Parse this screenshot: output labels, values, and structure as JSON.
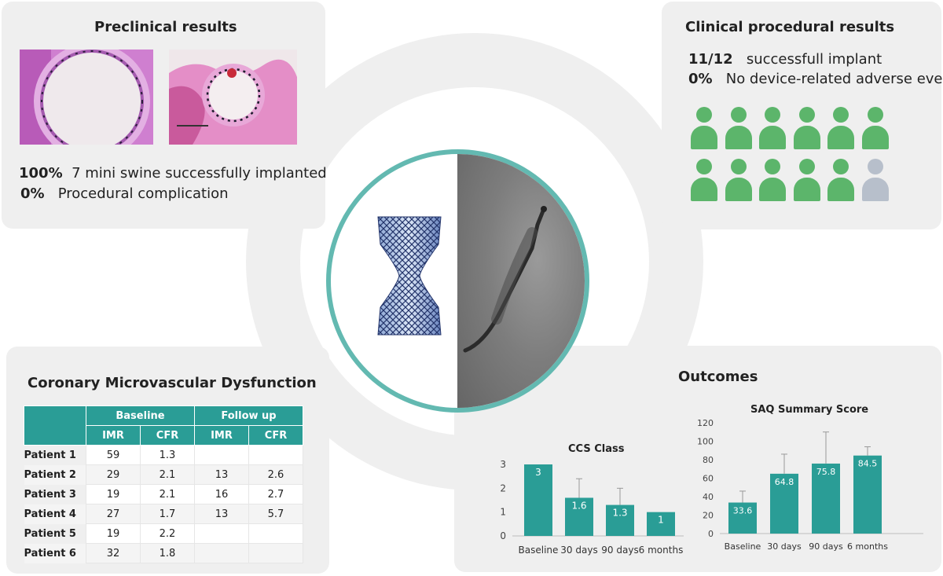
{
  "preclinical": {
    "title": "Preclinical results",
    "stat1_value": "100%",
    "stat1_text": "7 mini swine successfully implanted",
    "stat2_value": "0%",
    "stat2_text": "Procedural complication"
  },
  "clinical": {
    "title": "Clinical procedural results",
    "stat1_value": "11/12",
    "stat1_text": "successfull implant",
    "stat2_value": "0%",
    "stat2_text": "No device-related adverse events",
    "patients_total": 12,
    "patients_success": 11,
    "success_color": "#5cb56b",
    "fail_color": "#b7bfcb"
  },
  "cmd": {
    "title": "Coronary Microvascular Dysfunction",
    "group_baseline": "Baseline",
    "group_followup": "Follow up",
    "col_imr": "IMR",
    "col_cfr": "CFR",
    "rows": [
      {
        "label": "Patient 1",
        "b_imr": "59",
        "b_cfr": "1.3",
        "f_imr": "",
        "f_cfr": ""
      },
      {
        "label": "Patient 2",
        "b_imr": "29",
        "b_cfr": "2.1",
        "f_imr": "13",
        "f_cfr": "2.6"
      },
      {
        "label": "Patient 3",
        "b_imr": "19",
        "b_cfr": "2.1",
        "f_imr": "16",
        "f_cfr": "2.7"
      },
      {
        "label": "Patient 4",
        "b_imr": "27",
        "b_cfr": "1.7",
        "f_imr": "13",
        "f_cfr": "5.7"
      },
      {
        "label": "Patient 5",
        "b_imr": "19",
        "b_cfr": "2.2",
        "f_imr": "",
        "f_cfr": ""
      },
      {
        "label": "Patient 6",
        "b_imr": "32",
        "b_cfr": "1.8",
        "f_imr": "",
        "f_cfr": ""
      }
    ]
  },
  "outcomes": {
    "title": "Outcomes"
  },
  "accent_color": "#2a9d96",
  "chart_data": [
    {
      "type": "bar",
      "title": "CCS Class",
      "categories": [
        "Baseline",
        "30 days",
        "90 days",
        "6 months"
      ],
      "values": [
        3,
        1.6,
        1.3,
        1
      ],
      "value_labels": [
        "3",
        "1.6",
        "1.3",
        "1"
      ],
      "error_upper": [
        3,
        2.4,
        2.0,
        1.0
      ],
      "ylim": [
        0,
        3
      ],
      "yticks": [
        0,
        1,
        2,
        3
      ],
      "grid": false,
      "color": "#2a9d96"
    },
    {
      "type": "bar",
      "title": "SAQ Summary Score",
      "categories": [
        "Baseline",
        "30 days",
        "90 days",
        "6 months"
      ],
      "values": [
        33.6,
        64.8,
        75.8,
        84.5
      ],
      "value_labels": [
        "33.6",
        "64.8",
        "75.8",
        "84.5"
      ],
      "error_upper": [
        46,
        86,
        110,
        94
      ],
      "ylim": [
        0,
        120
      ],
      "yticks": [
        0,
        20,
        40,
        60,
        80,
        100,
        120
      ],
      "grid": false,
      "color": "#2a9d96"
    }
  ]
}
